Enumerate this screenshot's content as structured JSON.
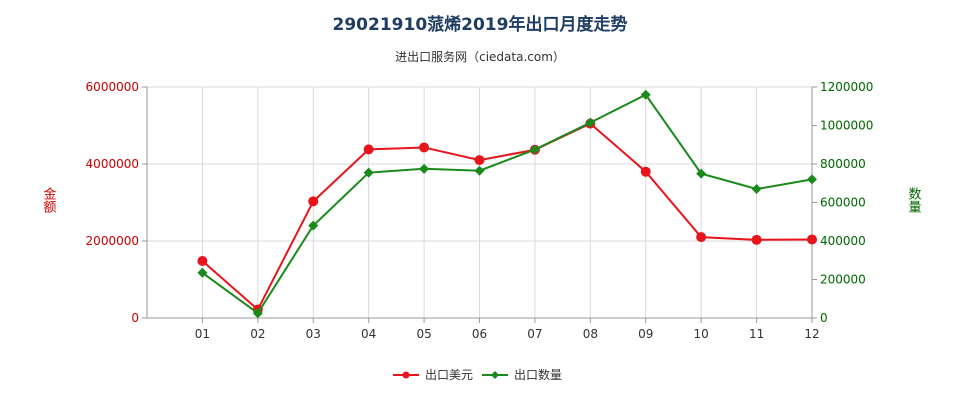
{
  "chart_data": {
    "type": "line",
    "title": "29021910蒎烯2019年出口月度走势",
    "subtitle": "进出口服务网（ciedata.com）",
    "categories": [
      "01",
      "02",
      "03",
      "04",
      "05",
      "06",
      "07",
      "08",
      "09",
      "10",
      "11",
      "12"
    ],
    "y_left": {
      "label": "金额",
      "ylim": [
        0,
        6000000
      ],
      "ticks": [
        "0",
        "2000000",
        "4000000",
        "6000000"
      ],
      "color": "#cc0000"
    },
    "y_right": {
      "label": "数量",
      "ylim": [
        0,
        1200000
      ],
      "ticks": [
        "0",
        "200000",
        "400000",
        "600000",
        "800000",
        "1000000",
        "1200000"
      ],
      "color": "#006600"
    },
    "series": [
      {
        "name": "出口美元",
        "axis": "left",
        "color": "#e8141c",
        "values": [
          1480000,
          220000,
          3030000,
          4380000,
          4430000,
          4100000,
          4370000,
          5050000,
          3800000,
          2100000,
          2030000,
          2040000
        ]
      },
      {
        "name": "出口数量",
        "axis": "right",
        "color": "#1a8a1a",
        "values": [
          235000,
          25000,
          480000,
          755000,
          775000,
          765000,
          875000,
          1015000,
          1160000,
          750000,
          670000,
          720000
        ]
      }
    ],
    "grid": true,
    "legend": "bottom-center"
  }
}
